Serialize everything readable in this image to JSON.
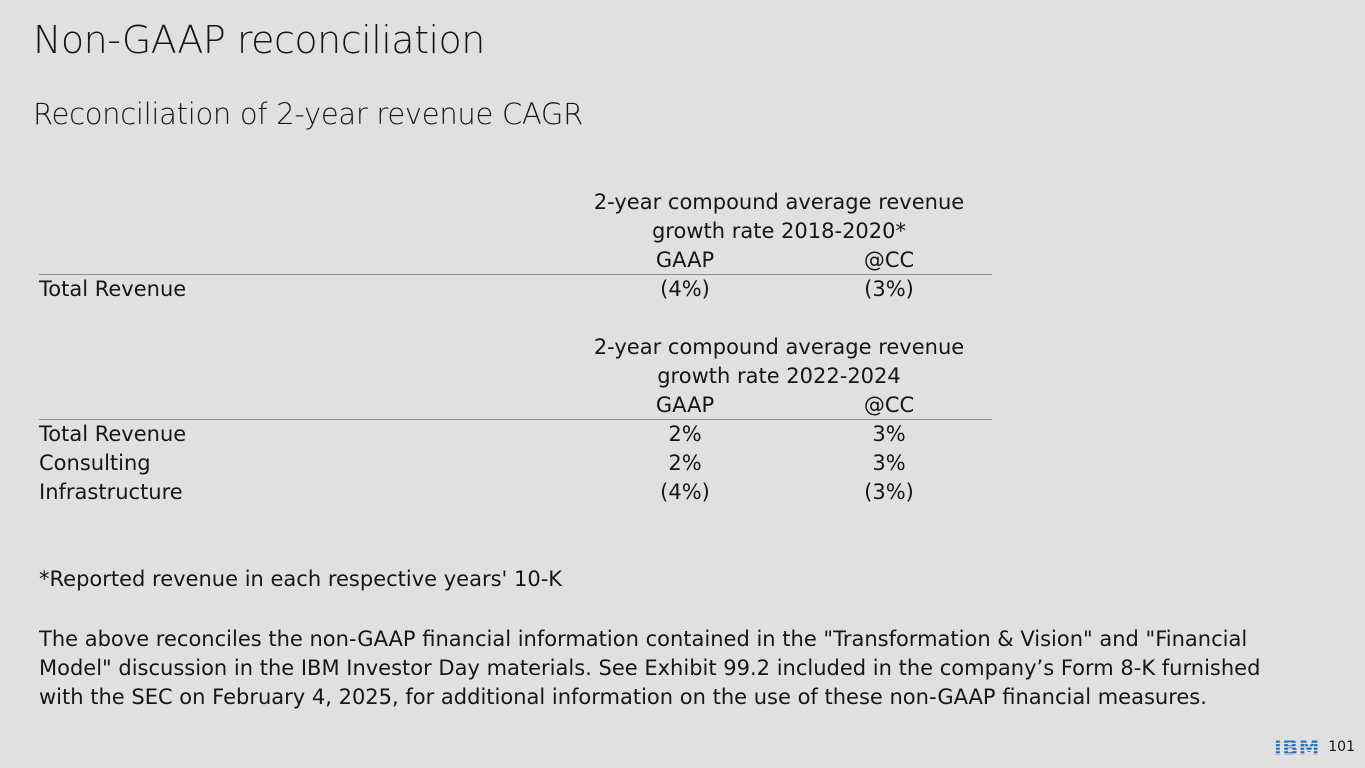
{
  "slide": {
    "title": "Non-GAAP reconciliation",
    "subtitle": "Reconciliation of 2-year revenue CAGR",
    "page_number": "101",
    "brand_color": "#1f70c1"
  },
  "tables": [
    {
      "header_line1": "2-year compound average revenue",
      "header_line2": "growth rate  2018-2020*",
      "col_gaap": "GAAP",
      "col_cc": "@CC",
      "rows": [
        {
          "label": "Total Revenue",
          "gaap": "(4%)",
          "cc": "(3%)"
        }
      ]
    },
    {
      "header_line1": "2-year compound average revenue",
      "header_line2": "growth rate  2022-2024",
      "col_gaap": "GAAP",
      "col_cc": "@CC",
      "rows": [
        {
          "label": "Total Revenue",
          "gaap": "2%",
          "cc": "3%"
        },
        {
          "label": "Consulting",
          "gaap": "2%",
          "cc": "3%"
        },
        {
          "label": "Infrastructure",
          "gaap": "(4%)",
          "cc": "(3%)"
        }
      ]
    }
  ],
  "footnote": "*Reported revenue in each respective years' 10-K",
  "disclaimer": "The above reconciles the non-GAAP financial information contained in the \"Transformation & Vision\" and \"Financial Model\" discussion in the IBM Investor Day materials. See Exhibit 99.2 included in the company’s Form 8-K furnished with the SEC on February 4, 2025, for additional information on the use of these non-GAAP financial measures.",
  "logo_text": "IBM",
  "icons": {
    "logo": "ibm-logo-icon"
  }
}
